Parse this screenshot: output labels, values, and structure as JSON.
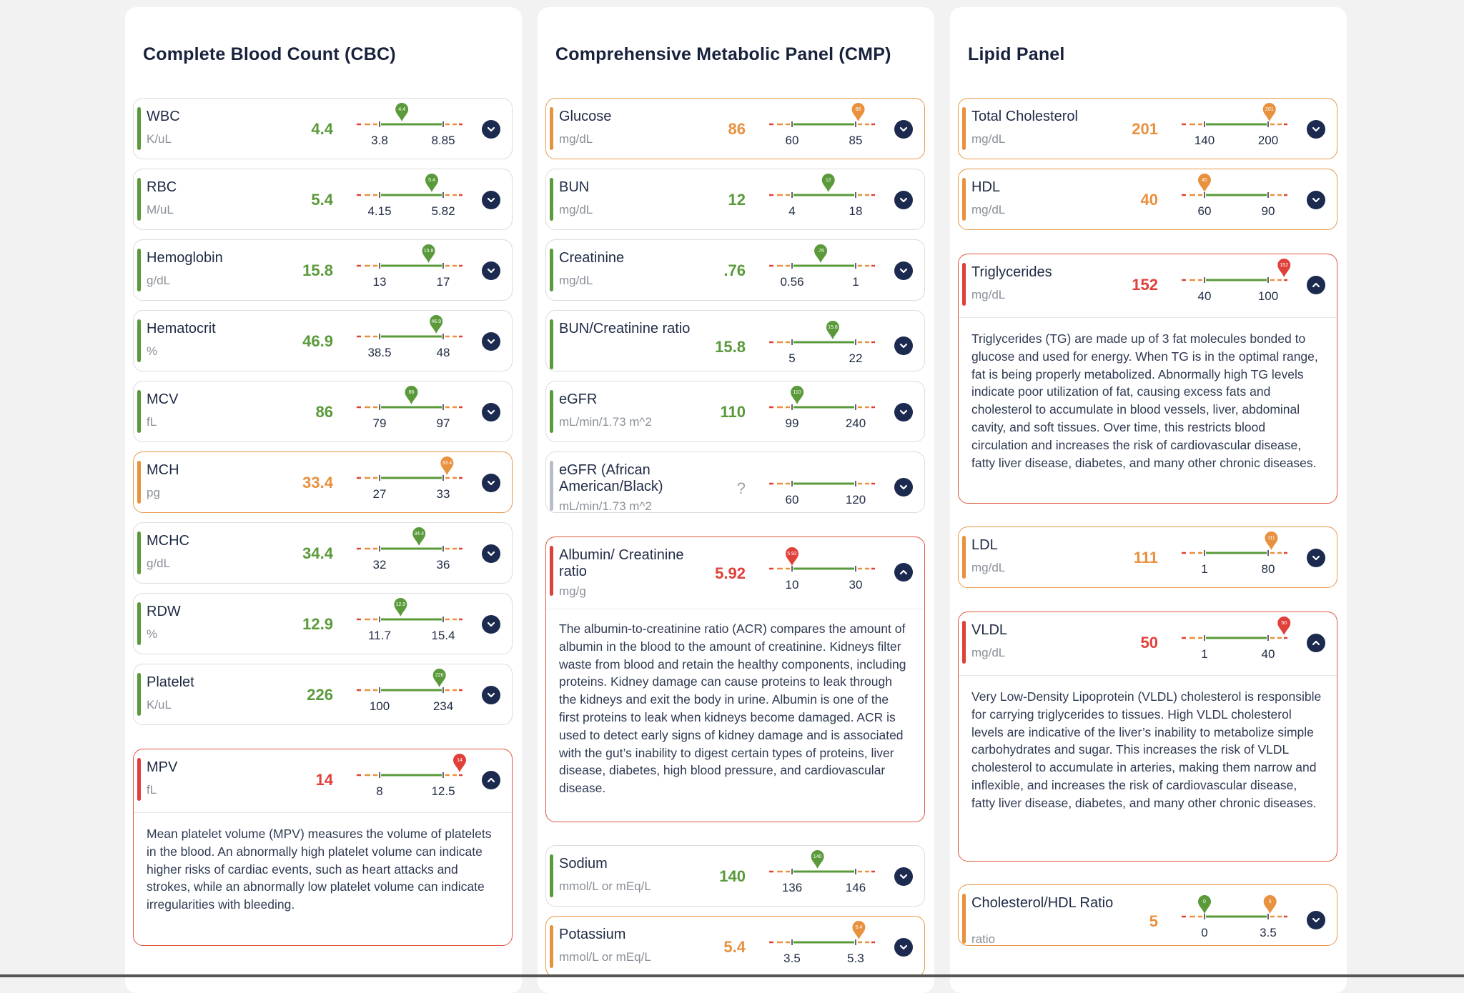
{
  "colors": {
    "green": "#5a9a3a",
    "orange": "#e8913e",
    "red": "#e0403a",
    "gray": "#b9bec6",
    "navy": "#1b2a4e"
  },
  "panels": [
    {
      "title": "Complete Blood Count (CBC)",
      "items": [
        {
          "name": "WBC",
          "unit": "K/uL",
          "value": "4.4",
          "low": "3.8",
          "high": "8.85",
          "status": "green",
          "marker_pos": 0.35,
          "expanded": false
        },
        {
          "name": "RBC",
          "unit": "M/uL",
          "value": "5.4",
          "low": "4.15",
          "high": "5.82",
          "status": "green",
          "marker_pos": 0.82,
          "expanded": false
        },
        {
          "name": "Hemoglobin",
          "unit": "g/dL",
          "value": "15.8",
          "low": "13",
          "high": "17",
          "status": "green",
          "marker_pos": 0.77,
          "expanded": false
        },
        {
          "name": "Hematocrit",
          "unit": "%",
          "value": "46.9",
          "low": "38.5",
          "high": "48",
          "status": "green",
          "marker_pos": 0.89,
          "expanded": false
        },
        {
          "name": "MCV",
          "unit": "fL",
          "value": "86",
          "low": "79",
          "high": "97",
          "status": "green",
          "marker_pos": 0.5,
          "expanded": false
        },
        {
          "name": "MCH",
          "unit": "pg",
          "value": "33.4",
          "low": "27",
          "high": "33",
          "status": "orange",
          "marker_pos": 1.06,
          "expanded": false
        },
        {
          "name": "MCHC",
          "unit": "g/dL",
          "value": "34.4",
          "low": "32",
          "high": "36",
          "status": "green",
          "marker_pos": 0.62,
          "expanded": false
        },
        {
          "name": "RDW",
          "unit": "%",
          "value": "12.9",
          "low": "11.7",
          "high": "15.4",
          "status": "green",
          "marker_pos": 0.33,
          "expanded": false
        },
        {
          "name": "Platelet",
          "unit": "K/uL",
          "value": "226",
          "low": "100",
          "high": "234",
          "status": "green",
          "marker_pos": 0.94,
          "expanded": false
        },
        {
          "name": "MPV",
          "unit": "fL",
          "value": "14",
          "low": "8",
          "high": "12.5",
          "status": "red",
          "marker_pos": 1.33,
          "expanded": true,
          "description": "Mean platelet volume (MPV) measures the volume of platelets in the blood. An abnormally high platelet volume can indicate higher risks of cardiac events, such as heart attacks and strokes, while an abnormally low platelet volume can indicate irregularities with bleeding."
        }
      ]
    },
    {
      "title": "Comprehensive Metabolic Panel (CMP)",
      "items": [
        {
          "name": "Glucose",
          "unit": "mg/dL",
          "value": "86",
          "low": "60",
          "high": "85",
          "status": "orange",
          "marker_pos": 1.04,
          "expanded": false
        },
        {
          "name": "BUN",
          "unit": "mg/dL",
          "value": "12",
          "low": "4",
          "high": "18",
          "status": "green",
          "marker_pos": 0.57,
          "expanded": false
        },
        {
          "name": "Creatinine",
          "unit": "mg/dL",
          "value": ".76",
          "low": "0.56",
          "high": "1",
          "status": "green",
          "marker_pos": 0.45,
          "expanded": false
        },
        {
          "name": "BUN/Creatinine ratio",
          "unit": "",
          "value": "15.8",
          "low": "5",
          "high": "22",
          "status": "green",
          "marker_pos": 0.64,
          "expanded": false,
          "tall": true
        },
        {
          "name": "eGFR",
          "unit": "mL/min/1.73 m^2",
          "value": "110",
          "low": "99",
          "high": "240",
          "status": "green",
          "marker_pos": 0.08,
          "expanded": false
        },
        {
          "name": "eGFR (African American/Black)",
          "unit": "mL/min/1.73 m^2",
          "value": "?",
          "low": "60",
          "high": "120",
          "status": "gray",
          "marker_pos": null,
          "expanded": false,
          "tall": true
        },
        {
          "name": "Albumin/ Creatinine ratio",
          "unit": "mg/g",
          "value": "5.92",
          "low": "10",
          "high": "30",
          "status": "red",
          "marker_pos": 0.0,
          "expanded": true,
          "tall": true,
          "description": "The albumin-to-creatinine ratio (ACR) compares the amount of albumin in the blood to the amount of creatinine. Kidneys filter waste from blood and retain the healthy components, including proteins. Kidney damage can cause proteins to leak through the kidneys and exit the body in urine. Albumin is one of the first proteins to leak when kidneys become damaged. ACR is used to detect early signs of kidney damage and is associated with the gut’s inability to digest certain types of proteins, liver disease, diabetes, high blood pressure, and cardiovascular disease."
        },
        {
          "name": "Sodium",
          "unit": "mmol/L or mEq/L",
          "value": "140",
          "low": "136",
          "high": "146",
          "status": "green",
          "marker_pos": 0.4,
          "expanded": false
        },
        {
          "name": "Potassium",
          "unit": "mmol/L or mEq/L",
          "value": "5.4",
          "low": "3.5",
          "high": "5.3",
          "status": "orange",
          "marker_pos": 1.05,
          "expanded": false
        }
      ]
    },
    {
      "title": "Lipid Panel",
      "items": [
        {
          "name": "Total Cholesterol",
          "unit": "mg/dL",
          "value": "201",
          "low": "140",
          "high": "200",
          "status": "orange",
          "marker_pos": 1.02,
          "expanded": false
        },
        {
          "name": "HDL",
          "unit": "mg/dL",
          "value": "40",
          "low": "60",
          "high": "90",
          "status": "orange",
          "marker_pos": 0.0,
          "expanded": false
        },
        {
          "name": "Triglycerides",
          "unit": "mg/dL",
          "value": "152",
          "low": "40",
          "high": "100",
          "status": "red",
          "marker_pos": 1.25,
          "expanded": true,
          "description": "Triglycerides (TG) are made up of 3 fat molecules bonded to glucose and used for energy. When TG is in the optimal range, fat is being properly metabolized. Abnormally high TG levels indicate poor utilization of fat, causing excess fats and cholesterol to accumulate in blood vessels, liver, abdominal cavity, and soft tissues. Over time, this restricts blood circulation and increases the risk of cardiovascular disease, fatty liver disease, diabetes, and many other chronic diseases."
        },
        {
          "name": "LDL",
          "unit": "mg/dL",
          "value": "111",
          "low": "1",
          "high": "80",
          "status": "orange",
          "marker_pos": 1.05,
          "expanded": false
        },
        {
          "name": "VLDL",
          "unit": "mg/dL",
          "value": "50",
          "low": "1",
          "high": "40",
          "status": "red",
          "marker_pos": 1.25,
          "expanded": true,
          "description": "Very Low-Density Lipoprotein (VLDL) cholesterol is responsible for carrying triglycerides to tissues. High VLDL cholesterol levels are indicative of the liver’s inability to metabolize simple carbohydrates and sugar. This increases the risk of VLDL cholesterol to accumulate in arteries, making them narrow and inflexible, and increases the risk of cardiovascular disease, fatty liver disease, diabetes, and many other chronic diseases."
        },
        {
          "name": "Cholesterol/HDL Ratio",
          "unit": "ratio",
          "value": "5",
          "low": "0",
          "high": "3.5",
          "status": "orange",
          "marker_pos": 1.03,
          "second_marker": 0.0,
          "expanded": false,
          "tall": true
        }
      ]
    }
  ]
}
